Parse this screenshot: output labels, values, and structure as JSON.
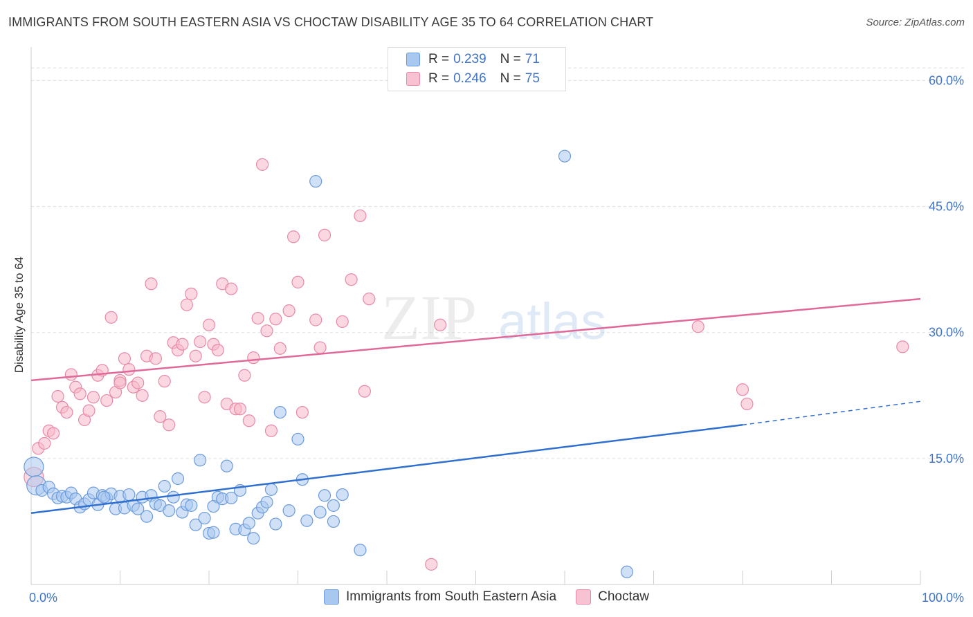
{
  "header": {
    "title": "IMMIGRANTS FROM SOUTH EASTERN ASIA VS CHOCTAW DISABILITY AGE 35 TO 64 CORRELATION CHART",
    "source": "Source: ZipAtlas.com"
  },
  "watermark": {
    "zip": "ZIP",
    "atlas": "atlas"
  },
  "legend_top": {
    "rows": [
      {
        "r_label": "R =",
        "r_value": "0.239",
        "n_label": "N =",
        "n_value": "71"
      },
      {
        "r_label": "R =",
        "r_value": "0.246",
        "n_label": "N =",
        "n_value": "75"
      }
    ]
  },
  "legend_bottom": {
    "items": [
      {
        "label": "Immigrants from South Eastern Asia"
      },
      {
        "label": "Choctaw"
      }
    ]
  },
  "colors": {
    "blue_fill": "#a9c8f0",
    "blue_stroke": "#6b9bdc",
    "blue_line": "#2f6fd0",
    "pink_fill": "#f7b7c9",
    "pink_stroke": "#e88aa6",
    "pink_line": "#e0699a",
    "grid": "#dddddd",
    "tick_label": "#3f74c9"
  },
  "chart_data": {
    "type": "scatter",
    "title": "IMMIGRANTS FROM SOUTH EASTERN ASIA VS CHOCTAW DISABILITY AGE 35 TO 64 CORRELATION CHART",
    "xlabel": "",
    "ylabel": "Disability Age 35 to 64",
    "x_ticks": [
      "0.0%",
      "100.0%"
    ],
    "y_ticks": [
      "15.0%",
      "30.0%",
      "45.0%",
      "60.0%"
    ],
    "y_tick_values": [
      15,
      30,
      45,
      60
    ],
    "xlim": [
      0,
      100
    ],
    "ylim": [
      0,
      63
    ],
    "grid": true,
    "legend_placement": "top-center",
    "series": [
      {
        "name": "Immigrants from South Eastern Asia",
        "R": 0.239,
        "N": 71,
        "trend": {
          "x0": 0,
          "y0": 8.5,
          "x1": 80,
          "y1": 19.0,
          "dash_to_x": 100,
          "dash_to_y": 21.8
        },
        "points": [
          {
            "x": 0.3,
            "y": 14.0,
            "big": true
          },
          {
            "x": 0.6,
            "y": 11.8,
            "big": true
          },
          {
            "x": 1.2,
            "y": 11.2
          },
          {
            "x": 2.0,
            "y": 11.6
          },
          {
            "x": 2.5,
            "y": 10.8
          },
          {
            "x": 3.0,
            "y": 10.3
          },
          {
            "x": 3.5,
            "y": 10.5
          },
          {
            "x": 4.0,
            "y": 10.4
          },
          {
            "x": 4.5,
            "y": 10.9
          },
          {
            "x": 5.0,
            "y": 10.2
          },
          {
            "x": 5.5,
            "y": 9.2
          },
          {
            "x": 6.0,
            "y": 9.6
          },
          {
            "x": 6.5,
            "y": 10.1
          },
          {
            "x": 7.0,
            "y": 10.9
          },
          {
            "x": 7.5,
            "y": 9.5
          },
          {
            "x": 8.0,
            "y": 10.6
          },
          {
            "x": 8.5,
            "y": 10.3
          },
          {
            "x": 9.0,
            "y": 10.8
          },
          {
            "x": 9.5,
            "y": 9.0
          },
          {
            "x": 10.0,
            "y": 10.5
          },
          {
            "x": 10.5,
            "y": 9.1
          },
          {
            "x": 11.0,
            "y": 10.7
          },
          {
            "x": 11.5,
            "y": 9.4
          },
          {
            "x": 12.0,
            "y": 9.0
          },
          {
            "x": 12.5,
            "y": 10.4
          },
          {
            "x": 13.0,
            "y": 8.1
          },
          {
            "x": 13.5,
            "y": 10.6
          },
          {
            "x": 14.0,
            "y": 9.6
          },
          {
            "x": 14.5,
            "y": 9.4
          },
          {
            "x": 15.0,
            "y": 11.7
          },
          {
            "x": 15.5,
            "y": 8.8
          },
          {
            "x": 16.0,
            "y": 10.4
          },
          {
            "x": 16.5,
            "y": 12.6
          },
          {
            "x": 17.0,
            "y": 8.6
          },
          {
            "x": 17.5,
            "y": 9.5
          },
          {
            "x": 18.0,
            "y": 9.4
          },
          {
            "x": 18.5,
            "y": 7.1
          },
          {
            "x": 19.0,
            "y": 14.8
          },
          {
            "x": 19.5,
            "y": 7.9
          },
          {
            "x": 20.0,
            "y": 6.1
          },
          {
            "x": 20.5,
            "y": 6.2
          },
          {
            "x": 21.0,
            "y": 10.4
          },
          {
            "x": 21.5,
            "y": 10.2
          },
          {
            "x": 22.0,
            "y": 14.1
          },
          {
            "x": 22.5,
            "y": 10.3
          },
          {
            "x": 23.0,
            "y": 6.6
          },
          {
            "x": 23.5,
            "y": 11.2
          },
          {
            "x": 24.0,
            "y": 6.5
          },
          {
            "x": 24.5,
            "y": 7.3
          },
          {
            "x": 25.0,
            "y": 5.5
          },
          {
            "x": 25.5,
            "y": 8.5
          },
          {
            "x": 26.0,
            "y": 9.2
          },
          {
            "x": 26.5,
            "y": 9.8
          },
          {
            "x": 27.0,
            "y": 11.3
          },
          {
            "x": 27.5,
            "y": 7.2
          },
          {
            "x": 28.0,
            "y": 20.5
          },
          {
            "x": 29.0,
            "y": 8.8
          },
          {
            "x": 30.0,
            "y": 17.3
          },
          {
            "x": 30.5,
            "y": 12.5
          },
          {
            "x": 31.0,
            "y": 7.6
          },
          {
            "x": 32.0,
            "y": 48.0
          },
          {
            "x": 32.5,
            "y": 8.6
          },
          {
            "x": 33.0,
            "y": 10.6
          },
          {
            "x": 34.0,
            "y": 9.4
          },
          {
            "x": 34.0,
            "y": 7.5
          },
          {
            "x": 35.0,
            "y": 10.7
          },
          {
            "x": 37.0,
            "y": 4.1
          },
          {
            "x": 60.0,
            "y": 51.0
          },
          {
            "x": 67.0,
            "y": 1.5
          },
          {
            "x": 20.5,
            "y": 9.3
          },
          {
            "x": 8.2,
            "y": 10.4
          }
        ]
      },
      {
        "name": "Choctaw",
        "R": 0.246,
        "N": 75,
        "trend": {
          "x0": 0,
          "y0": 24.3,
          "x1": 100,
          "y1": 34.0
        },
        "points": [
          {
            "x": 0.3,
            "y": 12.8,
            "big": true
          },
          {
            "x": 0.8,
            "y": 16.2
          },
          {
            "x": 1.5,
            "y": 16.8
          },
          {
            "x": 2.0,
            "y": 18.3
          },
          {
            "x": 2.5,
            "y": 18.0
          },
          {
            "x": 3.0,
            "y": 22.4
          },
          {
            "x": 3.5,
            "y": 21.1
          },
          {
            "x": 4.0,
            "y": 20.5
          },
          {
            "x": 4.5,
            "y": 25.0
          },
          {
            "x": 5.0,
            "y": 23.5
          },
          {
            "x": 5.5,
            "y": 22.7
          },
          {
            "x": 6.0,
            "y": 19.6
          },
          {
            "x": 6.5,
            "y": 20.7
          },
          {
            "x": 7.0,
            "y": 22.3
          },
          {
            "x": 7.5,
            "y": 24.9
          },
          {
            "x": 8.0,
            "y": 25.5
          },
          {
            "x": 8.5,
            "y": 21.9
          },
          {
            "x": 9.0,
            "y": 31.8
          },
          {
            "x": 9.5,
            "y": 22.9
          },
          {
            "x": 10.0,
            "y": 24.3
          },
          {
            "x": 10.5,
            "y": 26.9
          },
          {
            "x": 11.0,
            "y": 25.6
          },
          {
            "x": 11.5,
            "y": 23.5
          },
          {
            "x": 12.0,
            "y": 24.0
          },
          {
            "x": 12.5,
            "y": 22.5
          },
          {
            "x": 13.0,
            "y": 27.2
          },
          {
            "x": 13.5,
            "y": 35.8
          },
          {
            "x": 14.0,
            "y": 26.9
          },
          {
            "x": 14.5,
            "y": 20.0
          },
          {
            "x": 15.0,
            "y": 24.2
          },
          {
            "x": 15.5,
            "y": 19.0
          },
          {
            "x": 16.0,
            "y": 28.8
          },
          {
            "x": 16.5,
            "y": 27.9
          },
          {
            "x": 17.0,
            "y": 28.6
          },
          {
            "x": 17.5,
            "y": 33.3
          },
          {
            "x": 18.0,
            "y": 34.6
          },
          {
            "x": 18.5,
            "y": 27.2
          },
          {
            "x": 19.0,
            "y": 28.9
          },
          {
            "x": 19.5,
            "y": 22.3
          },
          {
            "x": 20.0,
            "y": 30.9
          },
          {
            "x": 20.5,
            "y": 28.6
          },
          {
            "x": 21.0,
            "y": 27.9
          },
          {
            "x": 21.5,
            "y": 35.8
          },
          {
            "x": 22.0,
            "y": 21.5
          },
          {
            "x": 22.5,
            "y": 35.2
          },
          {
            "x": 23.0,
            "y": 20.9
          },
          {
            "x": 23.5,
            "y": 20.9
          },
          {
            "x": 24.0,
            "y": 24.9
          },
          {
            "x": 24.5,
            "y": 19.5
          },
          {
            "x": 25.0,
            "y": 27.0
          },
          {
            "x": 25.5,
            "y": 31.7
          },
          {
            "x": 26.0,
            "y": 50.0
          },
          {
            "x": 26.5,
            "y": 30.2
          },
          {
            "x": 27.0,
            "y": 18.3
          },
          {
            "x": 27.5,
            "y": 31.6
          },
          {
            "x": 28.0,
            "y": 28.1
          },
          {
            "x": 29.0,
            "y": 32.6
          },
          {
            "x": 29.5,
            "y": 41.4
          },
          {
            "x": 30.0,
            "y": 36.0
          },
          {
            "x": 30.5,
            "y": 20.5
          },
          {
            "x": 32.0,
            "y": 31.5
          },
          {
            "x": 32.5,
            "y": 28.2
          },
          {
            "x": 33.0,
            "y": 41.6
          },
          {
            "x": 35.0,
            "y": 31.3
          },
          {
            "x": 36.0,
            "y": 36.3
          },
          {
            "x": 37.0,
            "y": 43.9
          },
          {
            "x": 37.5,
            "y": 23.0
          },
          {
            "x": 38.0,
            "y": 34.0
          },
          {
            "x": 45.0,
            "y": 2.4
          },
          {
            "x": 46.0,
            "y": 30.9
          },
          {
            "x": 75.0,
            "y": 30.7
          },
          {
            "x": 80.0,
            "y": 23.2
          },
          {
            "x": 80.5,
            "y": 21.5
          },
          {
            "x": 98.0,
            "y": 28.3
          },
          {
            "x": 10.0,
            "y": 24.0
          }
        ]
      }
    ]
  }
}
